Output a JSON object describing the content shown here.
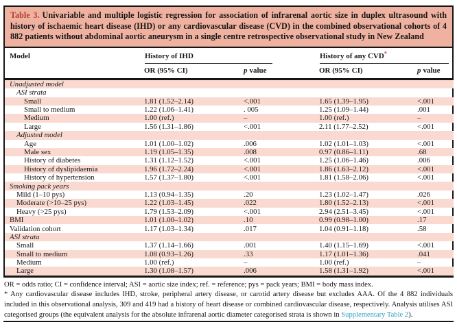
{
  "title": {
    "label": "Table 3.",
    "text": "Univariable and multiple logistic regression for association of infrarenal aortic size in duplex ultrasound with history of ischaemic heart disease (IHD) or any cardiovascular disease (CVD) in the combined observational cohorts of 4 882 patients without abdominal aortic aneurysm in a single centre retrospective observational study in New Zealand"
  },
  "header": {
    "model": "Model",
    "group_ihd": "History of IHD",
    "group_cvd": "History of any CVD",
    "group_cvd_marker": "*",
    "or_ci": "OR (95% CI)",
    "p_italic": "p",
    "p_rest": "value"
  },
  "rows": [
    {
      "label": "Unadjusted model"
    },
    {
      "label": "ASI strata"
    },
    {
      "label": "Small",
      "ihd_or": "1.81 (1.52–2.14)",
      "ihd_p": "<.001",
      "cvd_or": "1.65 (1.39–1.95)",
      "cvd_p": "<.001"
    },
    {
      "label": "Small to medium",
      "ihd_or": "1.22 (1.06–1.41)",
      "ihd_p": ". 005",
      "cvd_or": "1.25 (1.09–1.44)",
      "cvd_p": ".001"
    },
    {
      "label": "Medium",
      "ihd_or": "1.00 (ref.)",
      "ihd_p": "–",
      "cvd_or": "1.00 (ref.)",
      "cvd_p": "–"
    },
    {
      "label": "Large",
      "ihd_or": "1.56 (1.31–1.86)",
      "ihd_p": "<.001",
      "cvd_or": "2.11 (1.77–2.52)",
      "cvd_p": "<.001"
    },
    {
      "label": "Adjusted model"
    },
    {
      "label": "Age",
      "ihd_or": "1.01 (1.00–1.02)",
      "ihd_p": ".006",
      "cvd_or": "1.02 (1.01–1.03)",
      "cvd_p": "<.001"
    },
    {
      "label": "Male sex",
      "ihd_or": "1.19 (1.05–1.35)",
      "ihd_p": ".008",
      "cvd_or": "0.97 (0.86–1.11)",
      "cvd_p": ".68"
    },
    {
      "label": "History of diabetes",
      "ihd_or": "1.31 (1.12–1.52)",
      "ihd_p": "<.001",
      "cvd_or": "1.25 (1.06–1.46)",
      "cvd_p": ".006"
    },
    {
      "label": "History of dyslipidaemia",
      "ihd_or": "1.96 (1.72–2.24)",
      "ihd_p": "<.001",
      "cvd_or": "1.86 (1.63–2.12)",
      "cvd_p": "<.001"
    },
    {
      "label": "History of hypertension",
      "ihd_or": "1.57 (1.37–1.80)",
      "ihd_p": "<.001",
      "cvd_or": "1.81 (1.58–2.06)",
      "cvd_p": "<.001"
    },
    {
      "label": "Smoking pack years"
    },
    {
      "label": "Mild (1–10 pys)",
      "ihd_or": "1.13 (0.94–1.35)",
      "ihd_p": ".20",
      "cvd_or": "1.23 (1.02–1.47)",
      "cvd_p": ".026"
    },
    {
      "label": "Moderate (>10–25 pys)",
      "ihd_or": "1.22 (1.03–1.45)",
      "ihd_p": ".022",
      "cvd_or": "1.80 (1.52–2.13)",
      "cvd_p": "<.001"
    },
    {
      "label": "Heavy (>25 pys)",
      "ihd_or": "1.79 (1.53–2.09)",
      "ihd_p": "<.001",
      "cvd_or": "2.94 (2.51–3.45)",
      "cvd_p": "<.001"
    },
    {
      "label": "BMI",
      "ihd_or": "1.01 (1.00–1.02)",
      "ihd_p": ".10",
      "cvd_or": "0.99 (0.98–1.00)",
      "cvd_p": ".17"
    },
    {
      "label": "Validation cohort",
      "ihd_or": "1.17 (1.03–1.34)",
      "ihd_p": ".017",
      "cvd_or": "1.04 (0.91–1.18)",
      "cvd_p": ".58"
    },
    {
      "label": "ASI strata"
    },
    {
      "label": "Small",
      "ihd_or": "1.37 (1.14–1.66)",
      "ihd_p": ".001",
      "cvd_or": "1.40 (1.15–1.69)",
      "cvd_p": "<.001"
    },
    {
      "label": "Small to medium",
      "ihd_or": "1.08 (0.93–1.26)",
      "ihd_p": ".33",
      "cvd_or": "1.17 (1.01–1.36)",
      "cvd_p": ".041"
    },
    {
      "label": "Medium",
      "ihd_or": "1.00 (ref.)",
      "ihd_p": "–",
      "cvd_or": "1.00 (ref.)",
      "cvd_p": "–"
    },
    {
      "label": "Large",
      "ihd_or": "1.30 (1.08–1.57)",
      "ihd_p": ".006",
      "cvd_or": "1.58 (1.31–1.92)",
      "cvd_p": "<.001"
    }
  ],
  "footnotes": {
    "abbreviations": "OR = odds ratio; CI = confidence interval; ASI = aortic size index; ref. = reference; pys = pack years; BMI = body mass index.",
    "note_marker": "*",
    "note_text": " Any cardiovascular disease includes IHD, stroke, peripheral artery disease, or carotid artery disease but excludes AAA. Of the 4 882 individuals included in this observational analysis, 309 and 419 had a history of heart disease or combined cardiovascular disease, respectively. Analysis utilises ASI categorised groups (the equivalent analysis for the absolute infrarenal aortic diameter categorised strata is shown in ",
    "link": "Supplementary Table 2",
    "suffix": ")."
  },
  "colors": {
    "title_bg": "#efb2a1",
    "stripe": "#fadad0",
    "accent_red": "#b0412c",
    "link_blue": "#2f9fc6"
  }
}
